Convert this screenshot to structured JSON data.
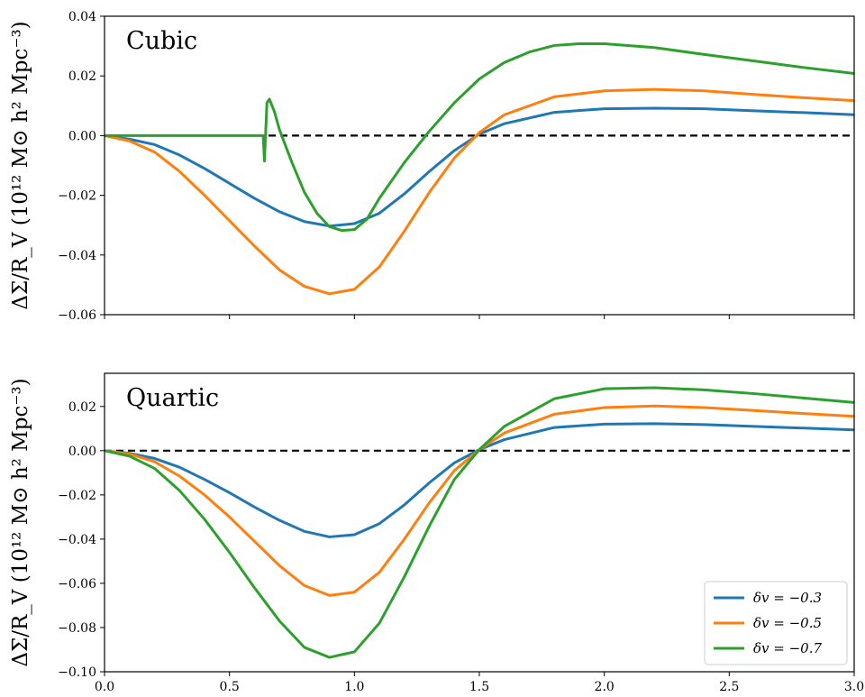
{
  "chart_data": [
    {
      "type": "line",
      "panel_label": "Cubic",
      "ylabel": "ΔΣ/R_V (10¹² M⊙ h² Mpc⁻³)",
      "xlim": [
        0.0,
        3.0
      ],
      "ylim": [
        -0.06,
        0.04
      ],
      "yticks": [
        -0.06,
        -0.04,
        -0.02,
        0.0,
        0.02,
        0.04
      ],
      "ytick_labels": [
        "−0.06",
        "−0.04",
        "−0.02",
        "0.00",
        "0.02",
        "0.04"
      ],
      "xticks": [
        0.0,
        0.5,
        1.0,
        1.5,
        2.0,
        2.5,
        3.0
      ],
      "xtick_labels": [
        "",
        "",
        "",
        "",
        "",
        "",
        ""
      ],
      "reference_line": 0.0,
      "series": [
        {
          "name": "δv = −0.3",
          "color": "#1f77b4",
          "x": [
            0.0,
            0.1,
            0.2,
            0.3,
            0.4,
            0.5,
            0.6,
            0.7,
            0.8,
            0.9,
            1.0,
            1.1,
            1.2,
            1.3,
            1.4,
            1.5,
            1.6,
            1.8,
            2.0,
            2.2,
            2.4,
            2.6,
            2.8,
            3.0
          ],
          "y": [
            0.0,
            -0.0012,
            -0.003,
            -0.0065,
            -0.011,
            -0.016,
            -0.021,
            -0.0255,
            -0.0288,
            -0.0303,
            -0.0295,
            -0.026,
            -0.0195,
            -0.012,
            -0.005,
            0.0005,
            0.004,
            0.0078,
            0.009,
            0.0092,
            0.009,
            0.0083,
            0.0077,
            0.007
          ]
        },
        {
          "name": "δv = −0.5",
          "color": "#ff7f0e",
          "x": [
            0.0,
            0.1,
            0.2,
            0.3,
            0.4,
            0.5,
            0.6,
            0.7,
            0.8,
            0.9,
            1.0,
            1.1,
            1.2,
            1.3,
            1.4,
            1.5,
            1.6,
            1.8,
            2.0,
            2.2,
            2.4,
            2.6,
            2.8,
            3.0
          ],
          "y": [
            0.0,
            -0.0018,
            -0.0055,
            -0.012,
            -0.02,
            -0.0285,
            -0.037,
            -0.045,
            -0.0505,
            -0.053,
            -0.0515,
            -0.044,
            -0.032,
            -0.019,
            -0.0075,
            0.001,
            0.007,
            0.013,
            0.015,
            0.0155,
            0.015,
            0.0138,
            0.0127,
            0.0117
          ]
        },
        {
          "name": "δv = −0.7",
          "color": "#2ca02c",
          "x": [
            0.0,
            0.3,
            0.6,
            0.635,
            0.64,
            0.65,
            0.66,
            0.68,
            0.7,
            0.75,
            0.8,
            0.85,
            0.9,
            0.95,
            1.0,
            1.05,
            1.1,
            1.2,
            1.3,
            1.4,
            1.5,
            1.6,
            1.7,
            1.8,
            1.9,
            2.0,
            2.2,
            2.4,
            2.6,
            2.8,
            3.0
          ],
          "y": [
            0.0,
            0.0,
            0.0,
            0.0,
            -0.0085,
            0.011,
            0.0122,
            0.008,
            0.002,
            -0.009,
            -0.019,
            -0.026,
            -0.0305,
            -0.0318,
            -0.0315,
            -0.028,
            -0.021,
            -0.009,
            0.0015,
            0.011,
            0.019,
            0.0245,
            0.028,
            0.0302,
            0.0308,
            0.0308,
            0.0295,
            0.0272,
            0.025,
            0.0228,
            0.0208
          ]
        }
      ]
    },
    {
      "type": "line",
      "panel_label": "Quartic",
      "ylabel": "ΔΣ/R_V (10¹² M⊙ h² Mpc⁻³)",
      "xlim": [
        0.0,
        3.0
      ],
      "ylim": [
        -0.1,
        0.035
      ],
      "yticks": [
        -0.1,
        -0.08,
        -0.06,
        -0.04,
        -0.02,
        0.0,
        0.02
      ],
      "ytick_labels": [
        "−0.10",
        "−0.08",
        "−0.06",
        "−0.04",
        "−0.02",
        "0.00",
        "0.02"
      ],
      "xticks": [
        0.0,
        0.5,
        1.0,
        1.5,
        2.0,
        2.5,
        3.0
      ],
      "xtick_labels": [
        "0.0",
        "0.5",
        "1.0",
        "1.5",
        "2.0",
        "2.5",
        "3.0"
      ],
      "reference_line": 0.0,
      "legend": "lower right",
      "series": [
        {
          "name": "δv = −0.3",
          "color": "#1f77b4",
          "x": [
            0.0,
            0.1,
            0.2,
            0.3,
            0.4,
            0.5,
            0.6,
            0.7,
            0.8,
            0.9,
            1.0,
            1.1,
            1.2,
            1.3,
            1.4,
            1.5,
            1.6,
            1.8,
            2.0,
            2.2,
            2.4,
            2.6,
            2.8,
            3.0
          ],
          "y": [
            0.0,
            -0.0012,
            -0.0035,
            -0.0075,
            -0.013,
            -0.019,
            -0.0255,
            -0.0315,
            -0.0365,
            -0.039,
            -0.038,
            -0.033,
            -0.0245,
            -0.0145,
            -0.0055,
            0.0005,
            0.005,
            0.0105,
            0.012,
            0.0122,
            0.0118,
            0.011,
            0.0102,
            0.0094
          ]
        },
        {
          "name": "δv = −0.5",
          "color": "#ff7f0e",
          "x": [
            0.0,
            0.1,
            0.2,
            0.3,
            0.4,
            0.5,
            0.6,
            0.7,
            0.8,
            0.9,
            1.0,
            1.1,
            1.2,
            1.3,
            1.4,
            1.5,
            1.6,
            1.8,
            2.0,
            2.2,
            2.4,
            2.6,
            2.8,
            3.0
          ],
          "y": [
            0.0,
            -0.0015,
            -0.005,
            -0.0115,
            -0.02,
            -0.03,
            -0.041,
            -0.052,
            -0.061,
            -0.0655,
            -0.064,
            -0.055,
            -0.04,
            -0.0235,
            -0.009,
            0.0005,
            0.008,
            0.0165,
            0.0195,
            0.0202,
            0.0195,
            0.0182,
            0.0168,
            0.0155
          ]
        },
        {
          "name": "δv = −0.7",
          "color": "#2ca02c",
          "x": [
            0.0,
            0.1,
            0.2,
            0.3,
            0.4,
            0.5,
            0.6,
            0.7,
            0.8,
            0.9,
            1.0,
            1.1,
            1.2,
            1.3,
            1.4,
            1.5,
            1.6,
            1.8,
            2.0,
            2.2,
            2.4,
            2.6,
            2.8,
            3.0
          ],
          "y": [
            0.0,
            -0.0025,
            -0.008,
            -0.018,
            -0.031,
            -0.046,
            -0.062,
            -0.077,
            -0.089,
            -0.0935,
            -0.091,
            -0.078,
            -0.057,
            -0.034,
            -0.013,
            0.0005,
            0.011,
            0.0235,
            0.028,
            0.0285,
            0.0275,
            0.0258,
            0.0238,
            0.0218
          ]
        }
      ]
    }
  ]
}
